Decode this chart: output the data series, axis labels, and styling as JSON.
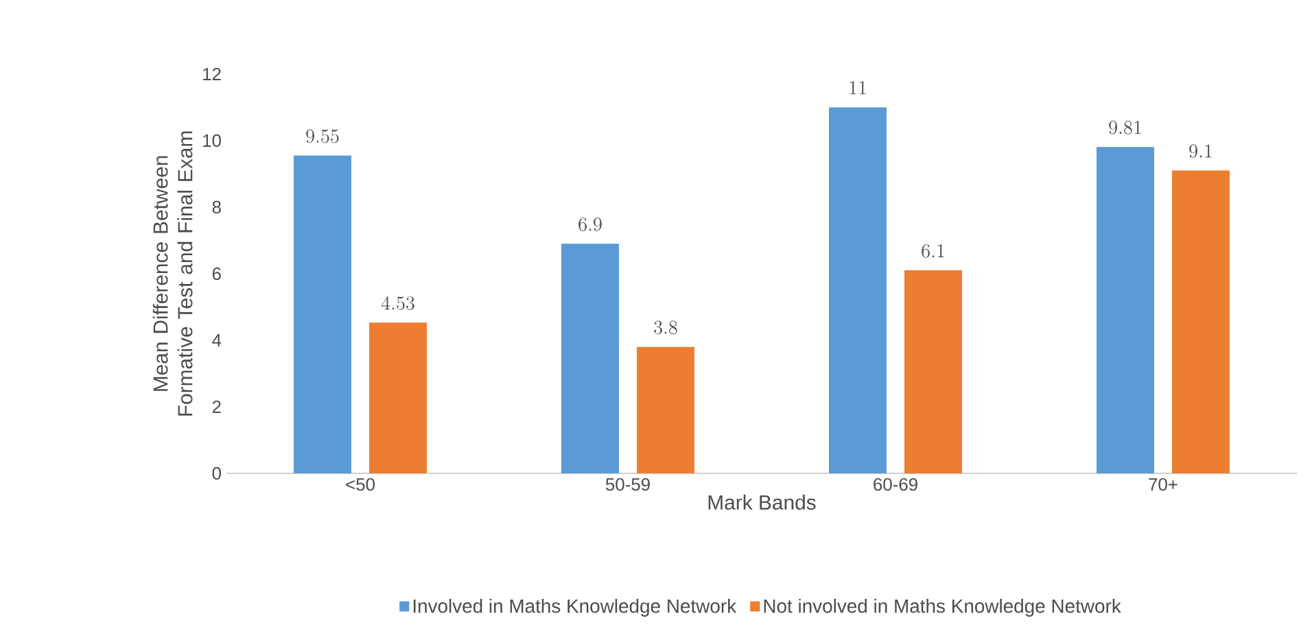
{
  "chart_data": {
    "type": "bar",
    "xlabel": "Mark Bands",
    "ylabel": "Mean Difference Between Formative Test and Final Exam",
    "categories": [
      "<50",
      "50-59",
      "60-69",
      "70+"
    ],
    "series": [
      {
        "name": "Involved in Maths Knowledge Network",
        "color": "#5b9bd5",
        "values": [
          9.55,
          6.9,
          11,
          9.81
        ]
      },
      {
        "name": "Not involved in Maths Knowledge Network",
        "color": "#ed7d31",
        "values": [
          4.53,
          3.8,
          6.1,
          9.1
        ]
      }
    ],
    "ylim": [
      0,
      12
    ],
    "yticks": [
      0,
      2,
      4,
      6,
      8,
      10,
      12
    ],
    "data_labels": true,
    "legend": "bottom",
    "grid": false
  }
}
